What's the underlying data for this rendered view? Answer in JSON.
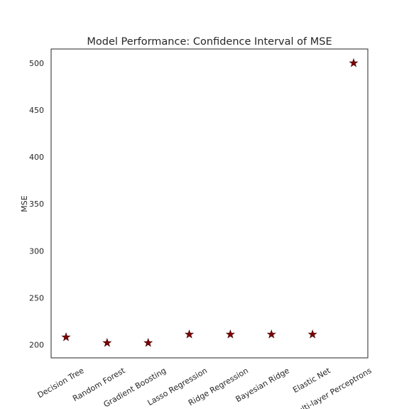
{
  "chart_data": {
    "type": "scatter",
    "title": "Model Performance: Confidence Interval of MSE",
    "xlabel": "",
    "ylabel": "MSE",
    "categories": [
      "Decision Tree",
      "Random Forest",
      "Gradient Boosting",
      "Lasso Regression",
      "Ridge Regression",
      "Bayesian Ridge",
      "Elastic Net",
      "Multi-layer Perceptrons"
    ],
    "values": [
      208,
      202,
      202,
      211,
      211,
      211,
      211,
      500
    ],
    "ylim": [
      186,
      515
    ],
    "yticks": [
      200,
      250,
      300,
      350,
      400,
      450,
      500
    ],
    "marker": "star",
    "marker_color": "#800000",
    "grid": false,
    "legend": "none"
  }
}
